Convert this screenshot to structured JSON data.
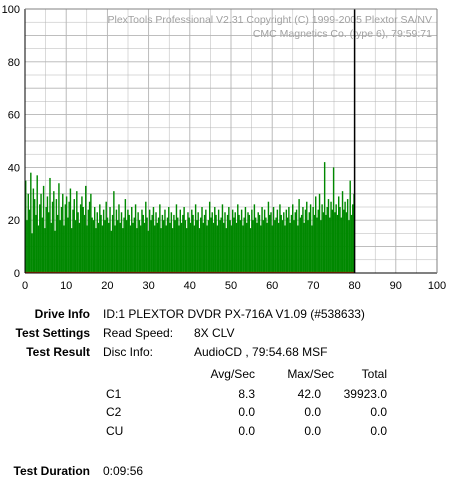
{
  "watermark": {
    "line1": "PlexTools Professional V2.31 Copyright (C) 1999-2005 Plextor SA/NV",
    "line2": "CMC Magnetics Co. (type 6), 79:59:71"
  },
  "colors": {
    "bars": "#008800",
    "grid": "#b4b4b4",
    "marker": "#000000",
    "baseline": "#c04000"
  },
  "chart_data": {
    "type": "bar",
    "xlim": [
      0,
      100
    ],
    "ylim": [
      0,
      100
    ],
    "xticks": [
      0,
      10,
      20,
      30,
      40,
      50,
      60,
      70,
      80,
      90,
      100
    ],
    "yticks": [
      0,
      20,
      40,
      60,
      80,
      100
    ],
    "marker_x": 80,
    "series": [
      {
        "values": [
          35,
          20,
          30,
          24,
          38,
          15,
          32,
          28,
          22,
          37,
          18,
          26,
          30,
          21,
          33,
          17,
          25,
          29,
          23,
          36,
          19,
          27,
          31,
          16,
          28,
          22,
          34,
          20,
          25,
          30,
          18,
          26,
          29,
          21,
          27,
          32,
          17,
          24,
          28,
          20,
          31,
          23,
          19,
          26,
          29,
          25,
          22,
          33,
          18,
          24,
          27,
          30,
          21,
          20,
          25,
          17,
          23,
          19,
          26,
          22,
          18,
          24,
          20,
          27,
          21,
          19,
          25,
          16,
          22,
          31,
          18,
          24,
          20,
          26,
          19,
          23,
          17,
          21,
          28,
          20,
          24,
          22,
          18,
          25,
          19,
          21,
          26,
          17,
          23,
          20,
          18,
          24,
          22,
          19,
          27,
          21,
          16,
          24,
          20,
          22,
          25,
          18,
          23,
          19,
          21,
          26,
          17,
          22,
          20,
          24,
          18,
          21,
          25,
          19,
          23,
          17,
          22,
          20,
          26,
          21,
          18,
          24,
          19,
          22,
          25,
          20,
          17,
          23,
          21,
          19,
          24,
          22,
          18,
          26,
          20,
          23,
          17,
          21,
          25,
          19,
          22,
          24,
          18,
          20,
          27,
          21,
          23,
          19,
          25,
          22,
          18,
          24,
          20,
          21,
          26,
          19,
          23,
          17,
          22,
          25,
          20,
          18,
          24,
          21,
          23,
          19,
          26,
          22,
          20,
          24,
          18,
          21,
          25,
          19,
          23,
          22,
          17,
          24,
          20,
          26,
          21,
          19,
          23,
          22,
          18,
          25,
          20,
          24,
          21,
          19,
          27,
          22,
          23,
          18,
          25,
          20,
          21,
          24,
          19,
          26,
          22,
          20,
          23,
          18,
          24,
          21,
          25,
          19,
          22,
          26,
          20,
          23,
          24,
          18,
          28,
          21,
          22,
          25,
          19,
          24,
          27,
          20,
          23,
          26,
          18,
          25,
          22,
          29,
          21,
          24,
          30,
          20,
          26,
          23,
          42,
          22,
          25,
          28,
          21,
          27,
          24,
          40,
          23,
          26,
          22,
          29,
          25,
          21,
          31,
          24,
          27,
          23,
          28,
          20,
          35,
          22,
          26,
          30
        ]
      }
    ]
  },
  "info": {
    "drive_info_label": "Drive Info",
    "drive_info_value": "ID:1 PLEXTOR DVDR PX-716A V1.09 (#538633)",
    "test_settings_label": "Test Settings",
    "read_speed_label": "Read Speed:",
    "read_speed_value": "8X CLV",
    "test_result_label": "Test Result",
    "disc_info_label": "Disc Info:",
    "disc_info_value": "AudioCD , 79:54.68 MSF",
    "col_avg": "Avg/Sec",
    "col_max": "Max/Sec",
    "col_total": "Total",
    "rows": [
      {
        "name": "C1",
        "avg": "8.3",
        "max": "42.0",
        "total": "39923.0"
      },
      {
        "name": "C2",
        "avg": "0.0",
        "max": "0.0",
        "total": "0.0"
      },
      {
        "name": "CU",
        "avg": "0.0",
        "max": "0.0",
        "total": "0.0"
      }
    ],
    "test_duration_label": "Test Duration",
    "test_duration_value": "0:09:56"
  }
}
